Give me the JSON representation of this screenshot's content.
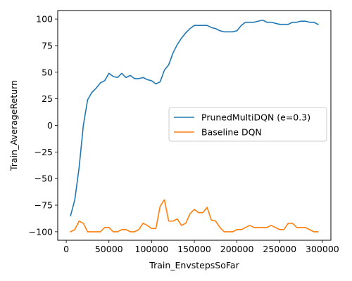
{
  "chart_data": {
    "type": "line",
    "xlabel": "Train_EnvstepsSoFar",
    "ylabel": "Train_AverageReturn",
    "xlim": [
      -10000,
      310000
    ],
    "ylim": [
      -108,
      108
    ],
    "xticks": [
      0,
      50000,
      100000,
      150000,
      200000,
      250000,
      300000
    ],
    "xtick_labels": [
      "0",
      "50000",
      "100000",
      "150000",
      "200000",
      "250000",
      "300000"
    ],
    "yticks": [
      -100,
      -75,
      -50,
      -25,
      0,
      25,
      50,
      75,
      100
    ],
    "ytick_labels": [
      "−100",
      "−75",
      "−50",
      "−25",
      "0",
      "25",
      "50",
      "75",
      "100"
    ],
    "grid": false,
    "legend_position": "center-right",
    "series": [
      {
        "name": "PrunedMultiDQN (e=0.3)",
        "color": "#1f77b4",
        "x": [
          5000,
          10000,
          15000,
          20000,
          25000,
          30000,
          35000,
          40000,
          45000,
          50000,
          55000,
          60000,
          65000,
          70000,
          75000,
          80000,
          85000,
          90000,
          95000,
          100000,
          105000,
          110000,
          115000,
          120000,
          125000,
          130000,
          135000,
          140000,
          145000,
          150000,
          155000,
          160000,
          165000,
          170000,
          175000,
          180000,
          185000,
          190000,
          195000,
          200000,
          205000,
          210000,
          215000,
          220000,
          225000,
          230000,
          235000,
          240000,
          245000,
          250000,
          255000,
          260000,
          265000,
          270000,
          275000,
          280000,
          285000,
          290000,
          295000
        ],
        "y": [
          -85,
          -70,
          -40,
          0,
          24,
          31,
          35,
          40,
          42,
          49,
          46,
          45,
          49,
          45,
          47,
          44,
          44,
          45,
          43,
          42,
          39,
          41,
          52,
          57,
          68,
          76,
          82,
          87,
          91,
          94,
          94,
          94,
          94,
          92,
          91,
          89,
          88,
          88,
          88,
          89,
          94,
          97,
          97,
          97,
          98,
          99,
          97,
          97,
          96,
          95,
          95,
          95,
          97,
          97,
          98,
          98,
          97,
          97,
          95
        ]
      },
      {
        "name": "Baseline DQN",
        "color": "#ff7f0e",
        "x": [
          5000,
          10000,
          15000,
          20000,
          25000,
          30000,
          35000,
          40000,
          45000,
          50000,
          55000,
          60000,
          65000,
          70000,
          75000,
          80000,
          85000,
          90000,
          95000,
          100000,
          105000,
          110000,
          115000,
          120000,
          125000,
          130000,
          135000,
          140000,
          145000,
          150000,
          155000,
          160000,
          165000,
          170000,
          175000,
          180000,
          185000,
          190000,
          195000,
          200000,
          205000,
          210000,
          215000,
          220000,
          225000,
          230000,
          235000,
          240000,
          245000,
          250000,
          255000,
          260000,
          265000,
          270000,
          275000,
          280000,
          285000,
          290000,
          295000
        ],
        "y": [
          -100,
          -98,
          -90,
          -92,
          -100,
          -100,
          -100,
          -100,
          -96,
          -96,
          -100,
          -100,
          -98,
          -98,
          -100,
          -100,
          -98,
          -92,
          -94,
          -97,
          -97,
          -76,
          -70,
          -90,
          -90,
          -88,
          -94,
          -92,
          -83,
          -79,
          -82,
          -82,
          -77,
          -89,
          -90,
          -96,
          -100,
          -100,
          -100,
          -98,
          -98,
          -96,
          -94,
          -96,
          -96,
          -96,
          -96,
          -94,
          -96,
          -98,
          -98,
          -92,
          -92,
          -96,
          -96,
          -96,
          -98,
          -100,
          -100
        ]
      }
    ]
  }
}
